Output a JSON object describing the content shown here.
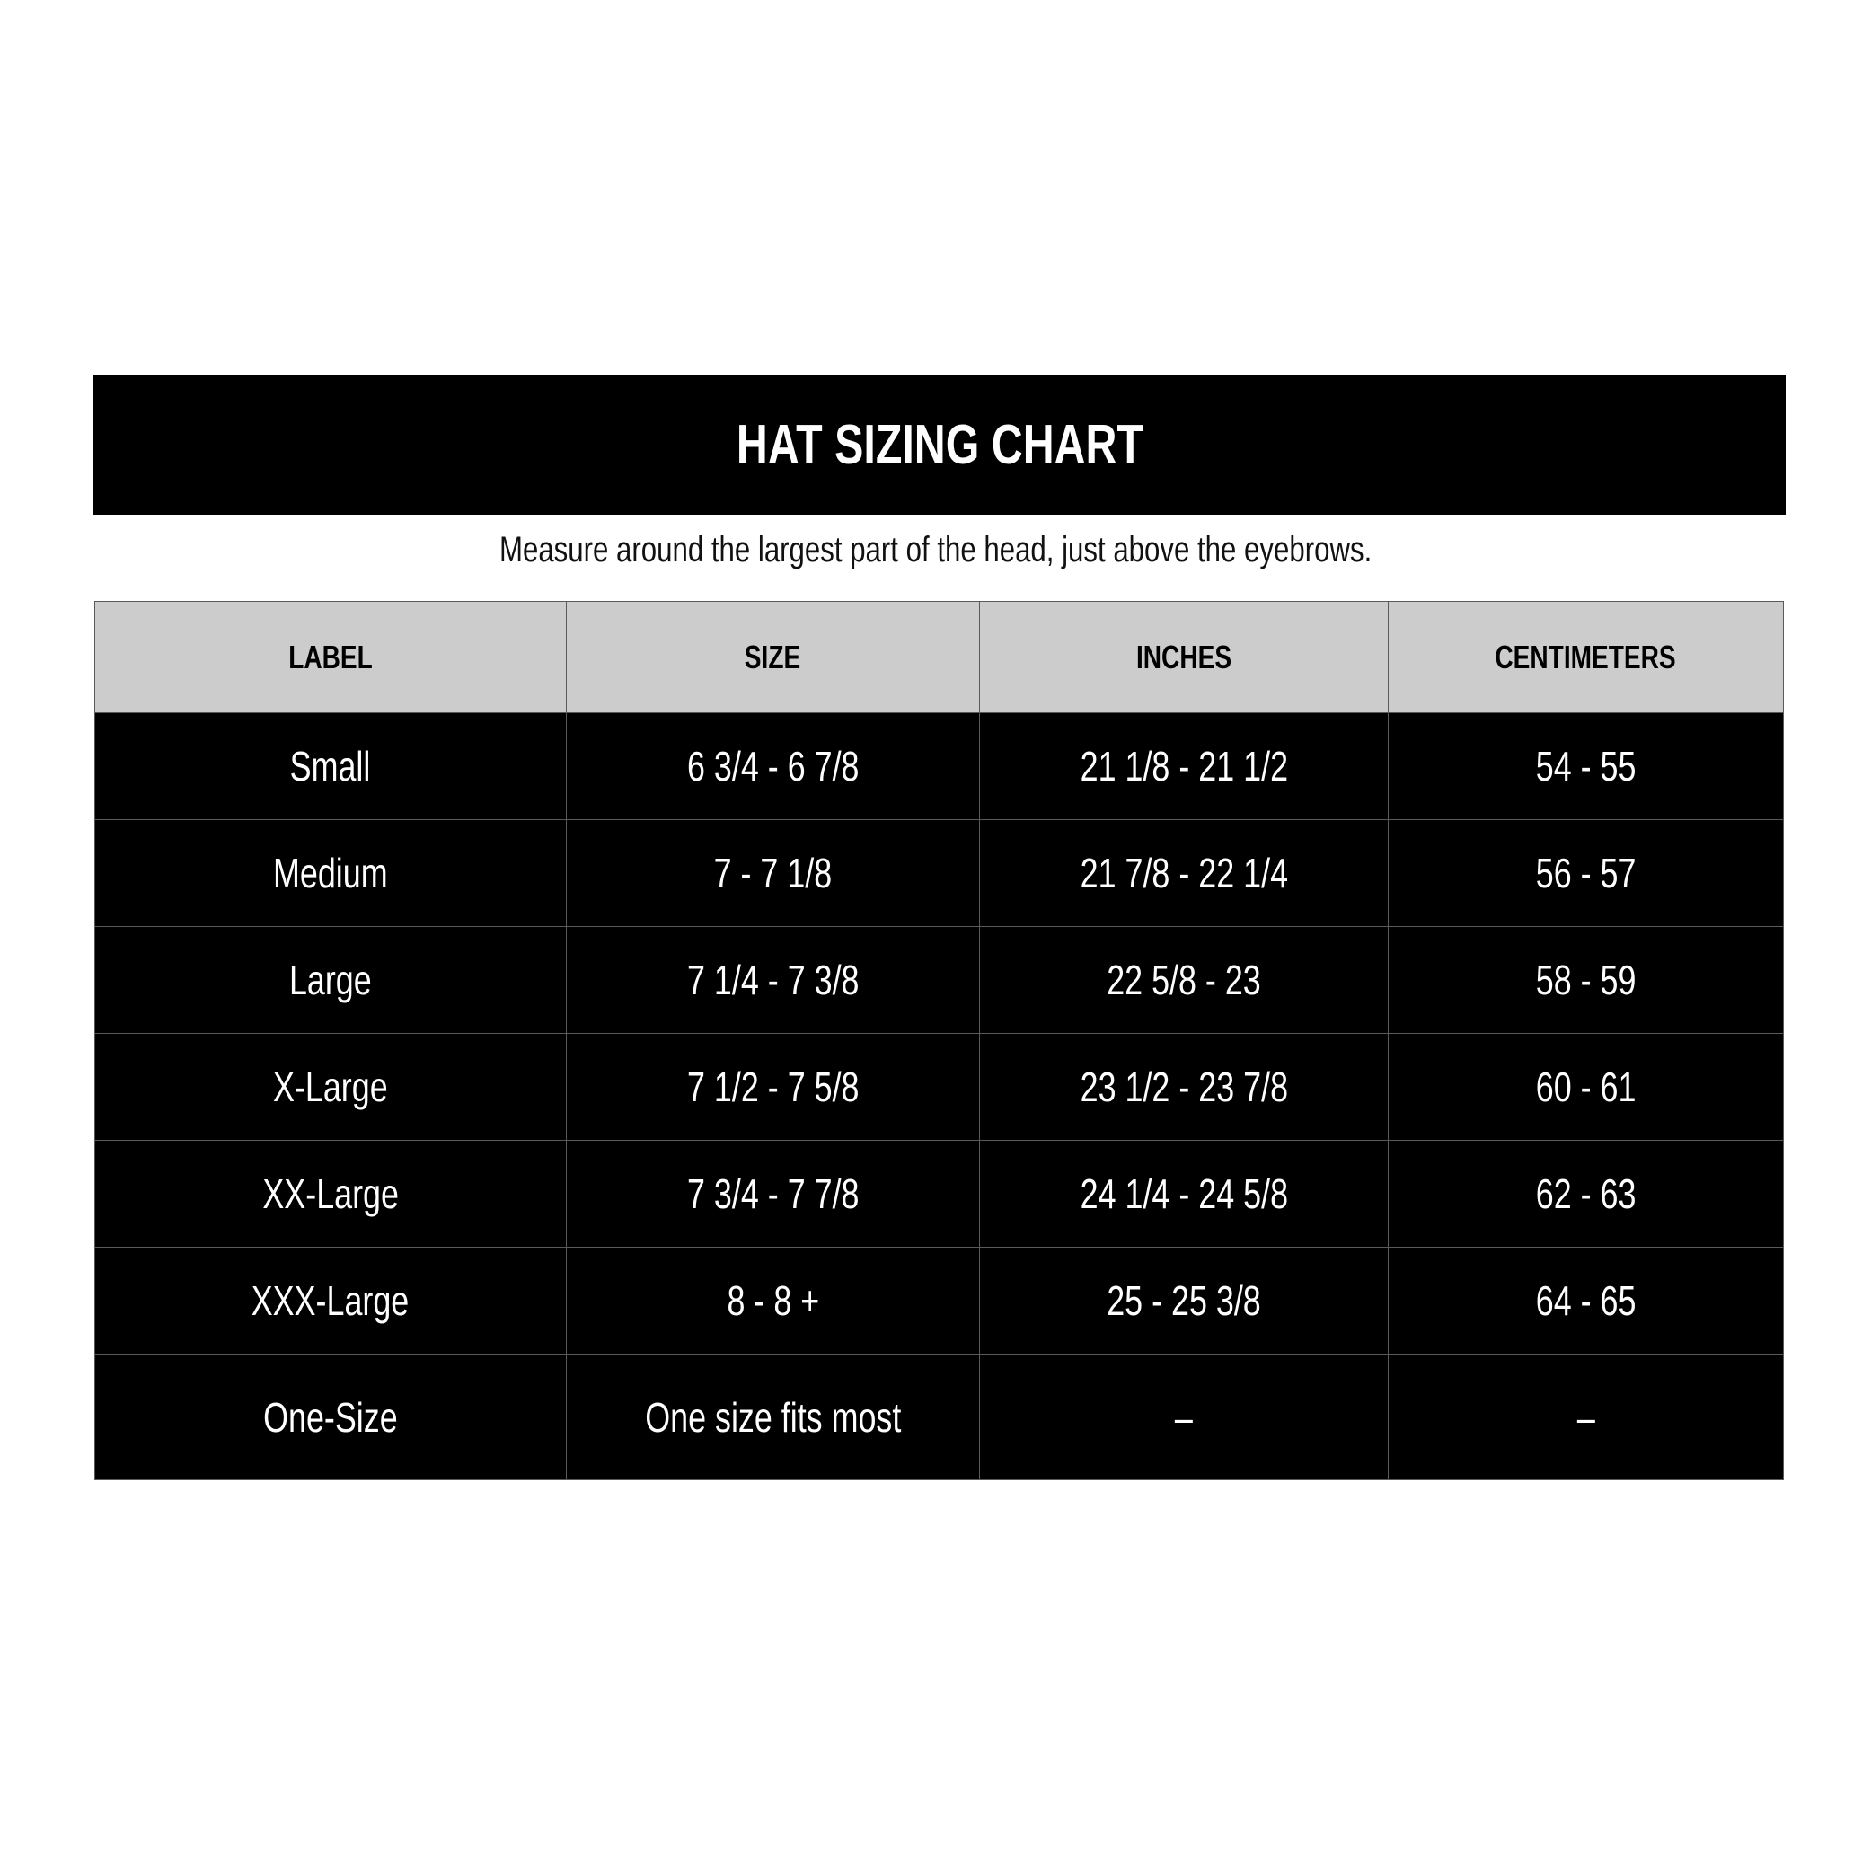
{
  "title": "HAT SIZING CHART",
  "subtitle": "Measure around the largest part of the head, just above the eyebrows.",
  "columns": [
    "LABEL",
    "SIZE",
    "INCHES",
    "CENTIMETERS"
  ],
  "rows": [
    [
      "Small",
      "6 3/4 - 6 7/8",
      "21 1/8 - 21 1/2",
      "54 - 55"
    ],
    [
      "Medium",
      "7 - 7 1/8",
      "21 7/8 - 22 1/4",
      "56 - 57"
    ],
    [
      "Large",
      "7 1/4 - 7 3/8",
      "22 5/8 - 23",
      "58 - 59"
    ],
    [
      "X-Large",
      "7 1/2 - 7 5/8",
      "23 1/2 - 23 7/8",
      "60 - 61"
    ],
    [
      "XX-Large",
      "7 3/4 - 7 7/8",
      "24 1/4 - 24 5/8",
      "62 - 63"
    ],
    [
      "XXX-Large",
      "8 - 8 +",
      "25 - 25 3/8",
      "64 - 65"
    ],
    [
      "One-Size",
      "One size fits most",
      "–",
      "–"
    ]
  ]
}
